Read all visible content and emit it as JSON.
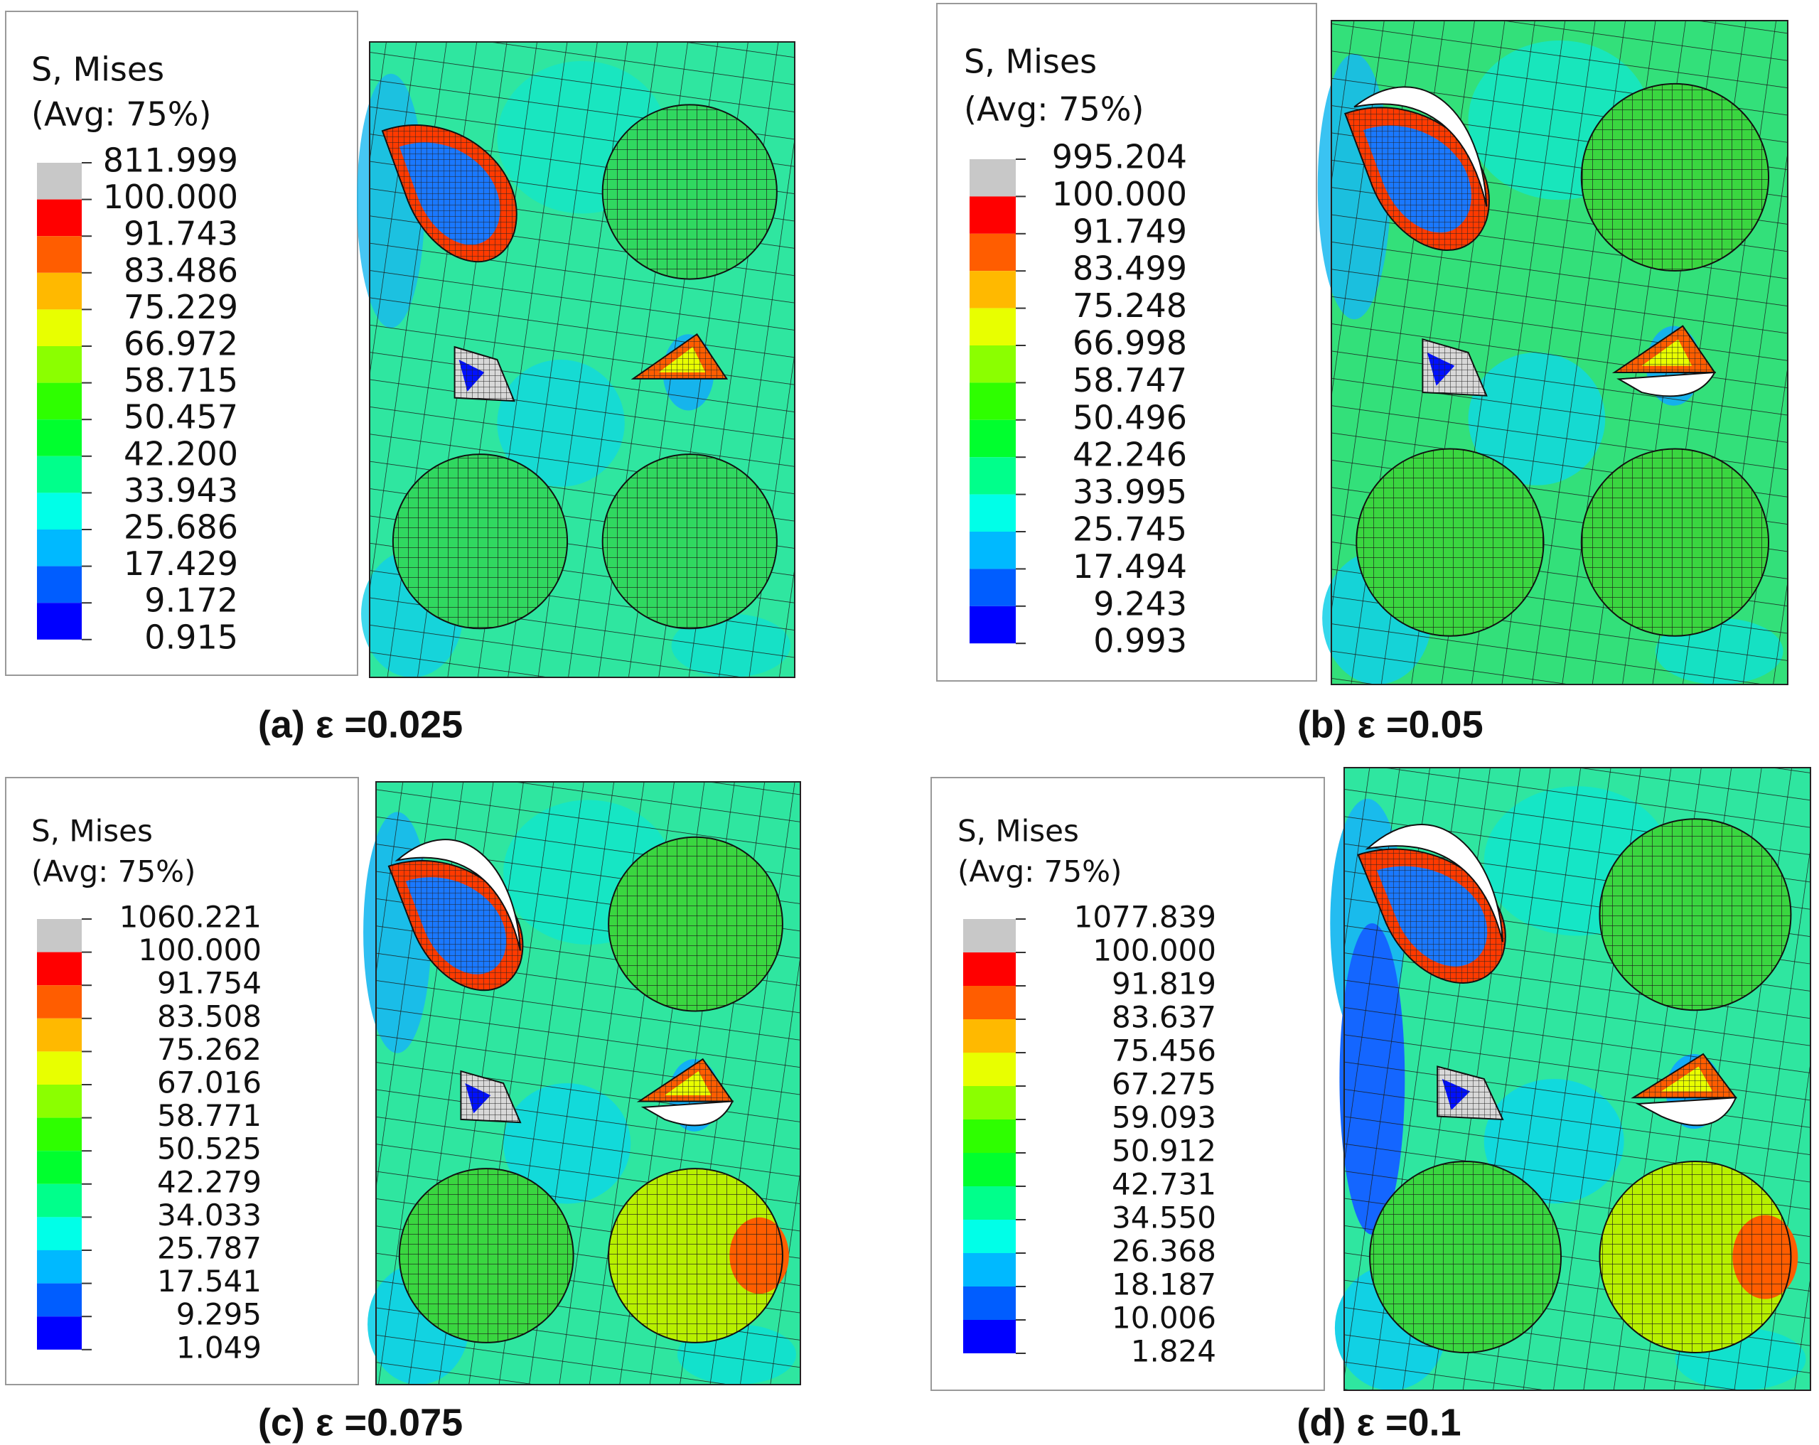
{
  "band_colors": [
    "#c8c8c8",
    "#ff0000",
    "#ff5d00",
    "#ffb900",
    "#e8ff00",
    "#8bff00",
    "#2eff00",
    "#00ff2e",
    "#00ff8b",
    "#00ffe8",
    "#00b9ff",
    "#005dff",
    "#0000ff"
  ],
  "panels": [
    {
      "legend_title": [
        "S, Mises",
        "(Avg: 75%)"
      ],
      "levels": [
        "811.999",
        "100.000",
        "91.743",
        "83.486",
        "75.229",
        "66.972",
        "58.715",
        "50.457",
        "42.200",
        "33.943",
        "25.686",
        "17.429",
        "9.172",
        "0.915"
      ],
      "caption": "(a) ε =0.025"
    },
    {
      "legend_title": [
        "S, Mises",
        "(Avg: 75%)"
      ],
      "levels": [
        "995.204",
        "100.000",
        "91.749",
        "83.499",
        "75.248",
        "66.998",
        "58.747",
        "50.496",
        "42.246",
        "33.995",
        "25.745",
        "17.494",
        "9.243",
        "0.993"
      ],
      "caption": "(b) ε =0.05"
    },
    {
      "legend_title": [
        "S, Mises",
        "(Avg: 75%)"
      ],
      "levels": [
        "1060.221",
        "100.000",
        "91.754",
        "83.508",
        "75.262",
        "67.016",
        "58.771",
        "50.525",
        "42.279",
        "34.033",
        "25.787",
        "17.541",
        "9.295",
        "1.049"
      ],
      "caption": "(c) ε =0.075"
    },
    {
      "legend_title": [
        "S, Mises",
        "(Avg: 75%)"
      ],
      "levels": [
        "1077.839",
        "100.000",
        "91.819",
        "83.637",
        "75.456",
        "67.275",
        "59.093",
        "50.912",
        "42.731",
        "34.550",
        "26.368",
        "18.187",
        "10.006",
        "1.824"
      ],
      "caption": "(d) ε =0.1"
    }
  ]
}
